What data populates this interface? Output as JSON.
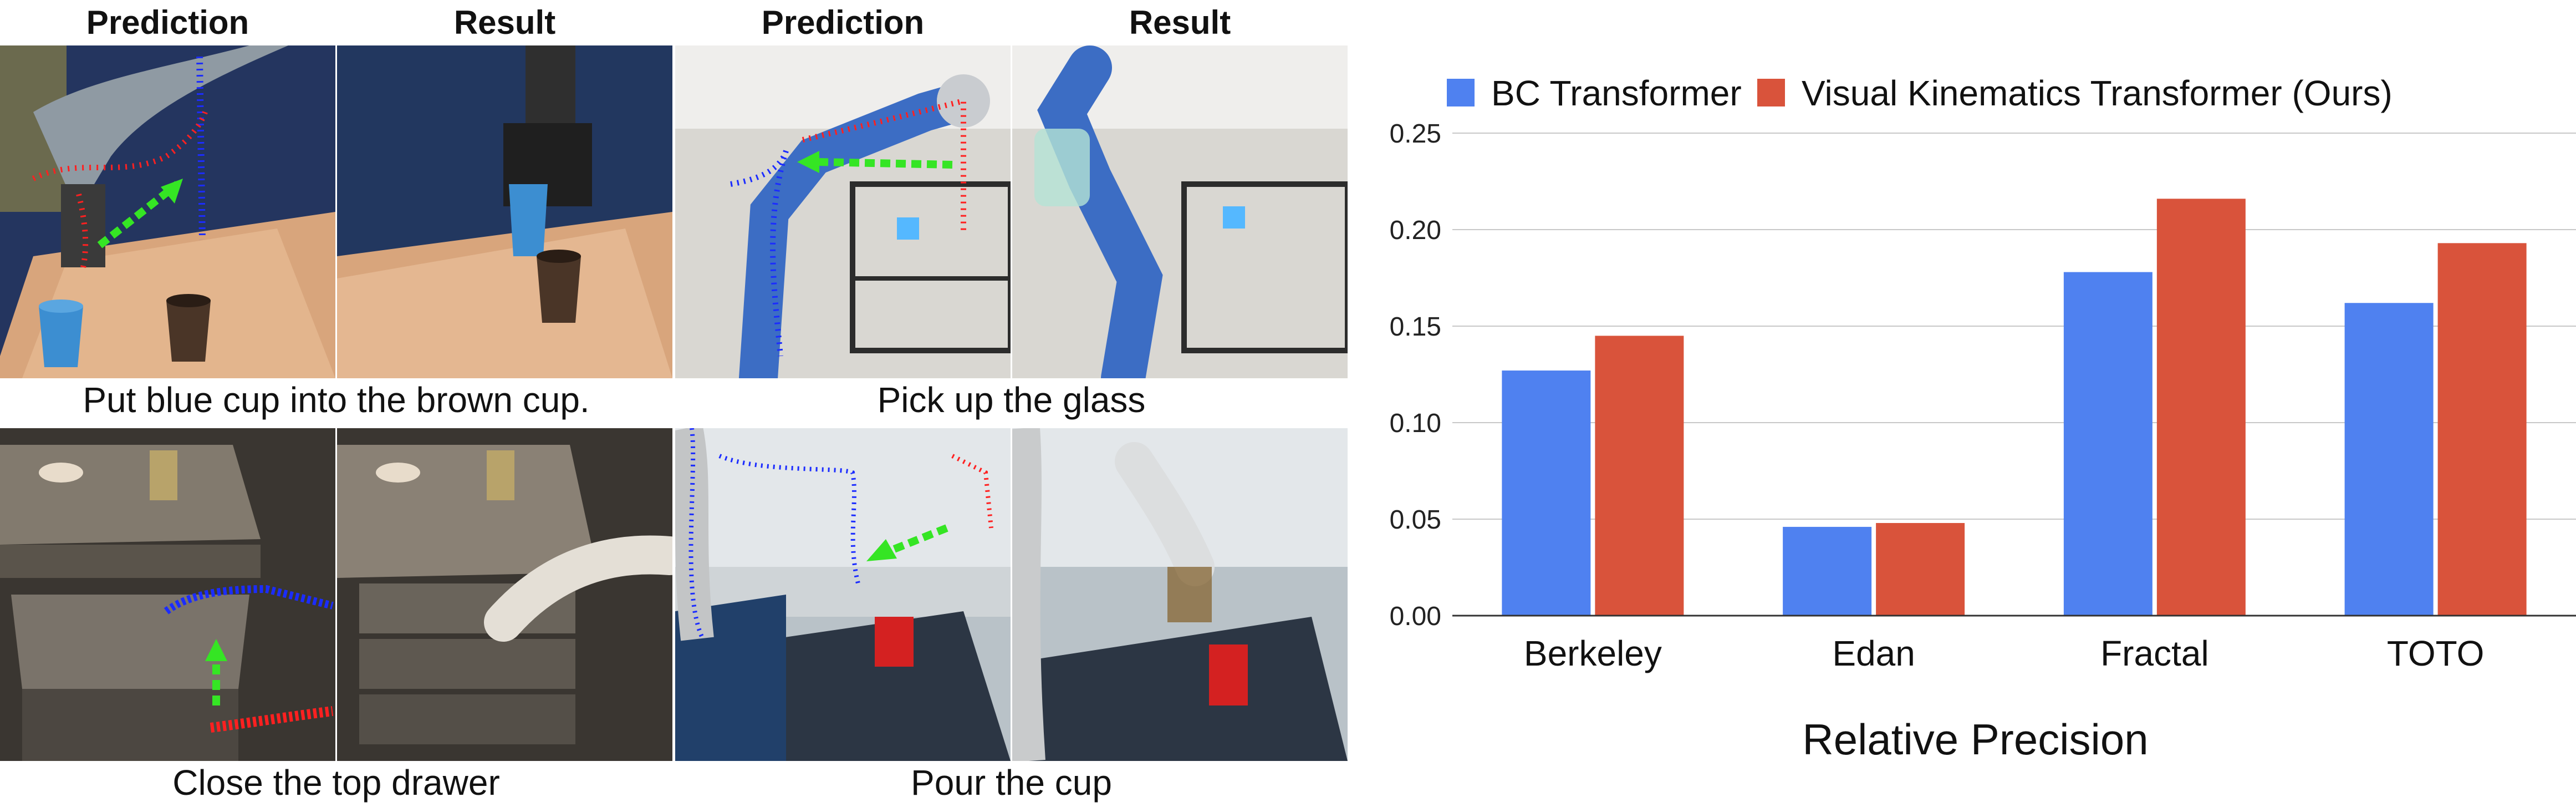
{
  "panels": {
    "headers": [
      "Prediction",
      "Result",
      "Prediction",
      "Result"
    ],
    "captions": [
      "Put blue cup into the brown cup.",
      "Pick up the glass",
      "Close the top drawer",
      "Pour the cup"
    ]
  },
  "chart_data": {
    "type": "bar",
    "categories": [
      "Berkeley",
      "Edan",
      "Fractal",
      "TOTO"
    ],
    "series": [
      {
        "name": "BC Transformer",
        "values": [
          0.127,
          0.046,
          0.178,
          0.162
        ],
        "color": "#4f81f0"
      },
      {
        "name": "Visual Kinematics Transformer (Ours)",
        "values": [
          0.145,
          0.048,
          0.216,
          0.193
        ],
        "color": "#d9533b"
      }
    ],
    "xlabel": "Relative Precision",
    "ylabel": "",
    "ylim": [
      0,
      0.25
    ],
    "yticks": [
      "0.00",
      "0.05",
      "0.10",
      "0.15",
      "0.20",
      "0.25"
    ],
    "grid": true,
    "legend": "top"
  }
}
